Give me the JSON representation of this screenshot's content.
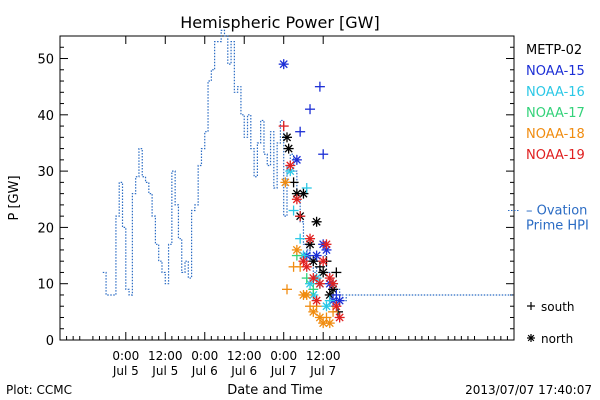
{
  "chart_data": {
    "type": "scatter",
    "title": "Hemispheric Power [GW]",
    "ylabel": "P [GW]",
    "xlabel": "Date and Time",
    "ylim": [
      0,
      54
    ],
    "yticks": [
      0,
      10,
      20,
      30,
      40,
      50
    ],
    "xlim_hours": [
      -20,
      118
    ],
    "xticks": [
      {
        "hour": 0,
        "time": "0:00",
        "date": "Jul 5"
      },
      {
        "hour": 12,
        "time": "12:00",
        "date": "Jul 5"
      },
      {
        "hour": 24,
        "time": "0:00",
        "date": "Jul 6"
      },
      {
        "hour": 36,
        "time": "12:00",
        "date": "Jul 6"
      },
      {
        "hour": 48,
        "time": "0:00",
        "date": "Jul 7"
      },
      {
        "hour": 60,
        "time": "12:00",
        "date": "Jul 7"
      }
    ],
    "ovation_label_lines": [
      "– Ovation",
      "Prime HPI"
    ],
    "ovation_color": "#2b6cc4",
    "ovation": [
      [
        -7,
        12
      ],
      [
        -6,
        8
      ],
      [
        -3,
        22
      ],
      [
        -2,
        28
      ],
      [
        -1,
        20
      ],
      [
        0,
        9
      ],
      [
        1,
        8
      ],
      [
        2,
        26
      ],
      [
        3,
        29
      ],
      [
        4,
        34
      ],
      [
        5,
        29
      ],
      [
        6,
        28
      ],
      [
        7,
        26
      ],
      [
        8,
        22
      ],
      [
        9,
        17
      ],
      [
        10,
        14
      ],
      [
        11,
        12
      ],
      [
        12,
        10
      ],
      [
        13,
        17
      ],
      [
        14,
        30
      ],
      [
        15,
        24
      ],
      [
        16,
        18
      ],
      [
        17,
        12
      ],
      [
        18,
        14
      ],
      [
        19,
        11
      ],
      [
        20,
        23
      ],
      [
        21,
        24
      ],
      [
        22,
        31
      ],
      [
        23,
        34
      ],
      [
        24,
        37
      ],
      [
        25,
        46
      ],
      [
        26,
        48
      ],
      [
        27,
        53
      ],
      [
        29,
        55
      ],
      [
        30,
        54
      ],
      [
        31,
        49
      ],
      [
        32,
        53
      ],
      [
        33,
        44
      ],
      [
        34,
        45
      ],
      [
        35,
        40
      ],
      [
        36,
        36
      ],
      [
        37,
        40
      ],
      [
        38,
        34
      ],
      [
        39,
        29
      ],
      [
        40,
        35
      ],
      [
        41,
        39
      ],
      [
        42,
        33
      ],
      [
        43,
        31
      ],
      [
        44,
        37
      ],
      [
        45,
        27
      ],
      [
        46,
        35
      ],
      [
        47,
        39
      ],
      [
        48,
        22
      ],
      [
        49,
        31
      ],
      [
        50,
        33
      ],
      [
        51,
        30
      ],
      [
        52,
        25
      ],
      [
        53,
        21
      ],
      [
        54,
        17
      ],
      [
        55,
        16
      ],
      [
        56,
        14
      ],
      [
        57,
        12
      ],
      [
        58,
        13
      ],
      [
        59,
        13
      ],
      [
        60,
        15
      ],
      [
        61,
        12
      ],
      [
        62,
        11
      ],
      [
        63,
        10
      ],
      [
        64,
        9
      ],
      [
        65,
        8
      ],
      [
        66,
        7
      ],
      [
        67,
        8
      ],
      [
        68,
        8
      ]
    ],
    "series": [
      {
        "name": "METP-02",
        "color": "#000000",
        "points": [
          {
            "x": 49,
            "y": 36,
            "m": "*"
          },
          {
            "x": 49.5,
            "y": 34,
            "m": "*"
          },
          {
            "x": 51,
            "y": 28,
            "m": "+"
          },
          {
            "x": 52,
            "y": 26,
            "m": "*"
          },
          {
            "x": 53,
            "y": 22,
            "m": "*"
          },
          {
            "x": 54,
            "y": 26,
            "m": "*"
          },
          {
            "x": 56,
            "y": 17,
            "m": "*"
          },
          {
            "x": 57,
            "y": 14,
            "m": "*"
          },
          {
            "x": 58,
            "y": 21,
            "m": "*"
          },
          {
            "x": 59,
            "y": 13,
            "m": "+"
          },
          {
            "x": 60,
            "y": 12,
            "m": "*"
          },
          {
            "x": 61,
            "y": 14,
            "m": "+"
          },
          {
            "x": 62,
            "y": 8,
            "m": "*"
          },
          {
            "x": 63,
            "y": 9,
            "m": "*"
          },
          {
            "x": 64,
            "y": 12,
            "m": "+"
          },
          {
            "x": 64.5,
            "y": 5,
            "m": "+"
          }
        ]
      },
      {
        "name": "NOAA-15",
        "color": "#1c2fd6",
        "points": [
          {
            "x": 48,
            "y": 49,
            "m": "*"
          },
          {
            "x": 59,
            "y": 45,
            "m": "+"
          },
          {
            "x": 56,
            "y": 41,
            "m": "+"
          },
          {
            "x": 53,
            "y": 37,
            "m": "+"
          },
          {
            "x": 52,
            "y": 32,
            "m": "*"
          },
          {
            "x": 60,
            "y": 33,
            "m": "+"
          },
          {
            "x": 55,
            "y": 15,
            "m": "*"
          },
          {
            "x": 58,
            "y": 15,
            "m": "*"
          },
          {
            "x": 60,
            "y": 17,
            "m": "*"
          },
          {
            "x": 61,
            "y": 16,
            "m": "*"
          },
          {
            "x": 62,
            "y": 10,
            "m": "*"
          },
          {
            "x": 63,
            "y": 7,
            "m": "*"
          },
          {
            "x": 64,
            "y": 8,
            "m": "+"
          },
          {
            "x": 65,
            "y": 7,
            "m": "*"
          }
        ]
      },
      {
        "name": "NOAA-16",
        "color": "#2bc8e6",
        "points": [
          {
            "x": 50,
            "y": 30,
            "m": "*"
          },
          {
            "x": 51,
            "y": 23,
            "m": "+"
          },
          {
            "x": 53,
            "y": 18,
            "m": "+"
          },
          {
            "x": 54,
            "y": 15,
            "m": "*"
          },
          {
            "x": 55,
            "y": 27,
            "m": "+"
          },
          {
            "x": 56,
            "y": 10,
            "m": "*"
          },
          {
            "x": 57,
            "y": 8,
            "m": "*"
          },
          {
            "x": 58,
            "y": 11,
            "m": "*"
          },
          {
            "x": 59,
            "y": 10,
            "m": "*"
          },
          {
            "x": 61,
            "y": 6,
            "m": "*"
          },
          {
            "x": 62,
            "y": 7,
            "m": "+"
          },
          {
            "x": 63,
            "y": 10,
            "m": "*"
          }
        ]
      },
      {
        "name": "NOAA-17",
        "color": "#33d27a",
        "points": [
          {
            "x": 52,
            "y": 15,
            "m": "+"
          },
          {
            "x": 55,
            "y": 11,
            "m": "+"
          },
          {
            "x": 57,
            "y": 9,
            "m": "+"
          }
        ]
      },
      {
        "name": "NOAA-18",
        "color": "#f08c10",
        "points": [
          {
            "x": 48.5,
            "y": 28,
            "m": "*"
          },
          {
            "x": 49,
            "y": 9,
            "m": "+"
          },
          {
            "x": 51,
            "y": 13,
            "m": "+"
          },
          {
            "x": 52,
            "y": 16,
            "m": "*"
          },
          {
            "x": 53,
            "y": 13,
            "m": "+"
          },
          {
            "x": 54,
            "y": 8,
            "m": "*"
          },
          {
            "x": 55,
            "y": 8,
            "m": "*"
          },
          {
            "x": 56,
            "y": 6,
            "m": "+"
          },
          {
            "x": 57,
            "y": 5,
            "m": "*"
          },
          {
            "x": 58,
            "y": 6,
            "m": "+"
          },
          {
            "x": 59,
            "y": 4,
            "m": "*"
          },
          {
            "x": 60,
            "y": 3,
            "m": "*"
          },
          {
            "x": 61,
            "y": 4,
            "m": "+"
          },
          {
            "x": 62,
            "y": 3,
            "m": "*"
          },
          {
            "x": 63,
            "y": 5,
            "m": "+"
          }
        ]
      },
      {
        "name": "NOAA-19",
        "color": "#e02020",
        "points": [
          {
            "x": 48,
            "y": 38,
            "m": "+"
          },
          {
            "x": 50,
            "y": 31,
            "m": "*"
          },
          {
            "x": 52,
            "y": 25,
            "m": "*"
          },
          {
            "x": 53,
            "y": 22,
            "m": "+"
          },
          {
            "x": 54,
            "y": 14,
            "m": "*"
          },
          {
            "x": 55,
            "y": 13,
            "m": "*"
          },
          {
            "x": 56,
            "y": 18,
            "m": "*"
          },
          {
            "x": 57,
            "y": 11,
            "m": "*"
          },
          {
            "x": 58,
            "y": 7,
            "m": "*"
          },
          {
            "x": 59,
            "y": 10,
            "m": "*"
          },
          {
            "x": 60,
            "y": 14,
            "m": "*"
          },
          {
            "x": 61,
            "y": 17,
            "m": "*"
          },
          {
            "x": 62,
            "y": 11,
            "m": "*"
          },
          {
            "x": 63,
            "y": 10,
            "m": "*"
          },
          {
            "x": 64,
            "y": 6,
            "m": "*"
          },
          {
            "x": 65,
            "y": 4,
            "m": "*"
          }
        ]
      }
    ],
    "marker_legend": [
      {
        "symbol": "+",
        "label": "south"
      },
      {
        "symbol": "*",
        "label": "north"
      }
    ]
  },
  "footer": {
    "left": "Plot: CCMC",
    "right": "2013/07/07 17:40:07"
  }
}
